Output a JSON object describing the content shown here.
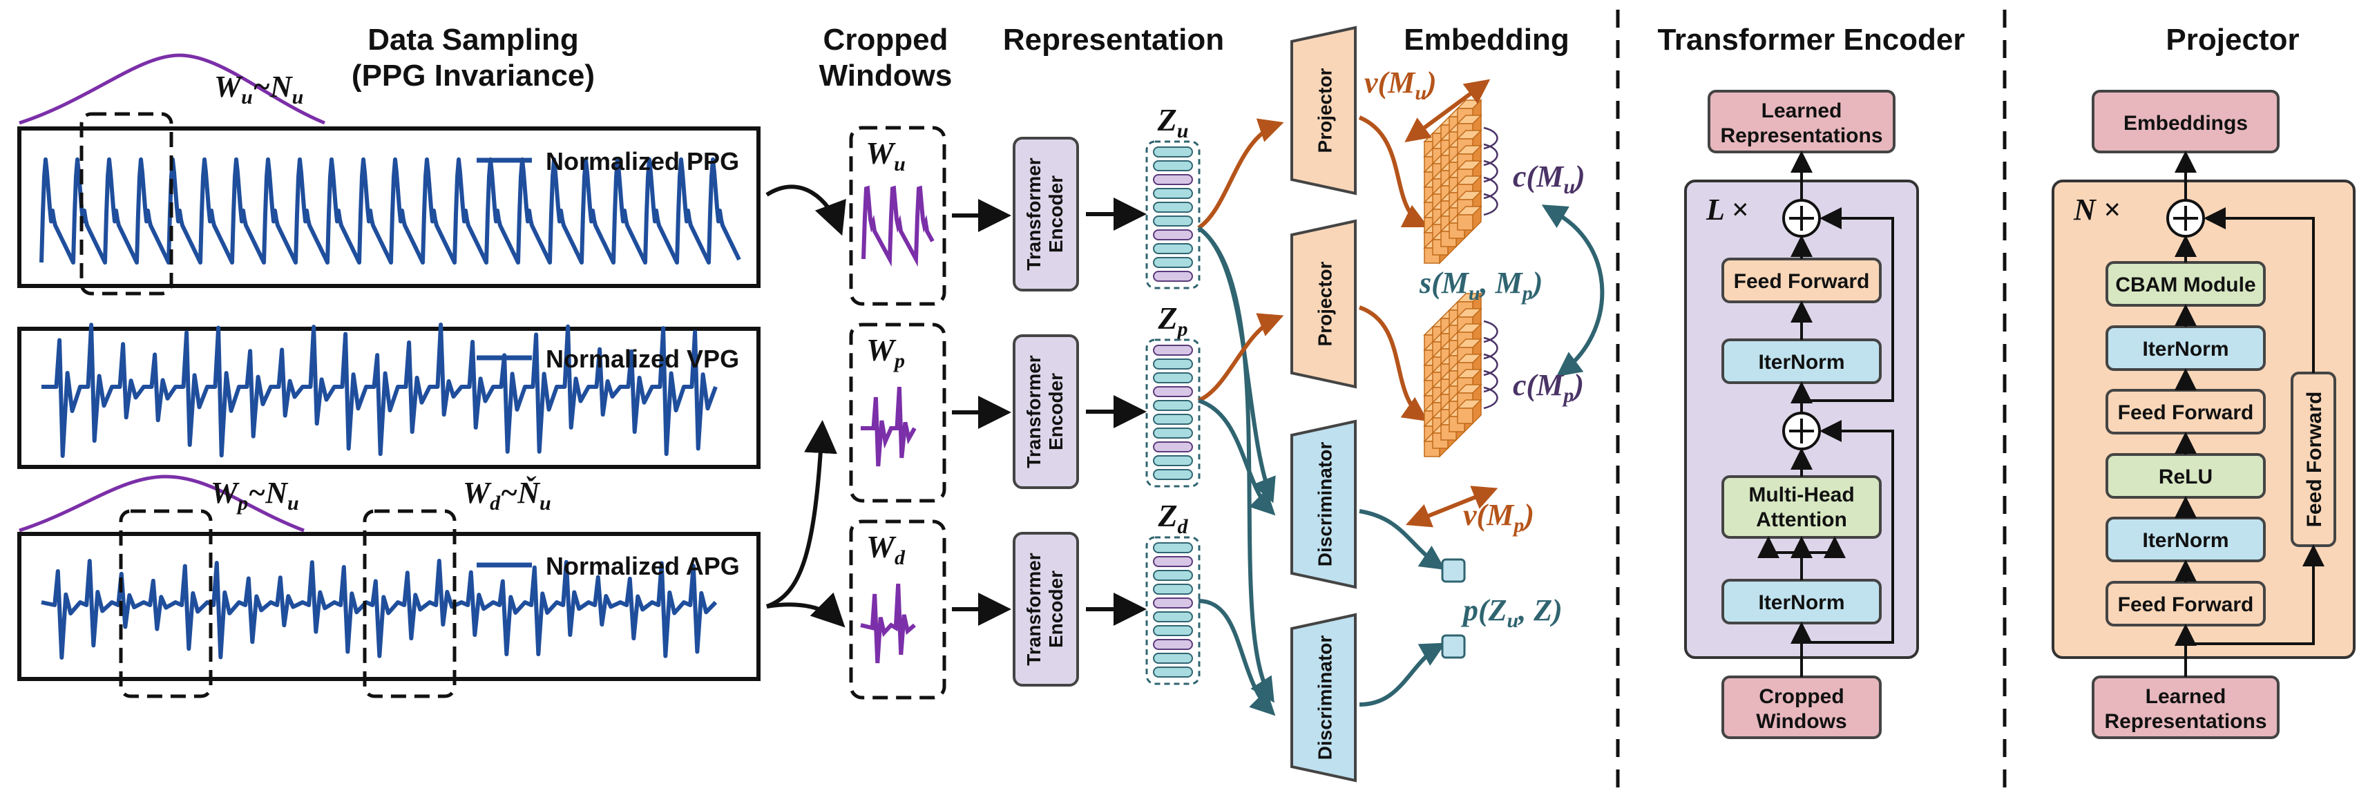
{
  "sections": {
    "data_sampling": "Data Sampling",
    "data_sampling_sub": "(PPG Invariance)",
    "cropped_windows_1": "Cropped",
    "cropped_windows_2": "Windows",
    "representation": "Representation",
    "embedding": "Embedding",
    "transformer_encoder": "Transformer Encoder",
    "projector": "Projector"
  },
  "signals": {
    "ppg_legend": "Normalized PPG",
    "vpg_legend": "Normalized VPG",
    "apg_legend": "Normalized APG"
  },
  "sampling_labels": {
    "wu": "W",
    "wu_sub": "u",
    "wu_dist": "~N",
    "wu_dist_sub": "u",
    "wp": "W",
    "wp_sub": "p",
    "wp_dist": "~N",
    "wp_dist_sub": "u",
    "wd": "W",
    "wd_sub": "d",
    "wd_dist": "~Ň",
    "wd_dist_sub": "u"
  },
  "windows": [
    {
      "sym": "W",
      "sub": "u"
    },
    {
      "sym": "W",
      "sub": "p"
    },
    {
      "sym": "W",
      "sub": "d"
    }
  ],
  "encoder_label_1": "Transformer",
  "encoder_label_2": "Encoder",
  "latents": [
    {
      "sym": "Z",
      "sub": "u"
    },
    {
      "sym": "Z",
      "sub": "p"
    },
    {
      "sym": "Z",
      "sub": "d"
    }
  ],
  "heads": {
    "projector": "Projector",
    "discriminator": "Discriminator"
  },
  "math_labels": {
    "v_mu": "v(M",
    "v_mu_sub": "u",
    "c_mu": "c(M",
    "c_mu_sub": "u",
    "s_m": "s(M",
    "s_m_sub1": "u",
    "s_m_mid": ", M",
    "s_m_sub2": "p",
    "c_mp": "c(M",
    "c_mp_sub": "p",
    "v_mp": "v(M",
    "v_mp_sub": "p",
    "p_z": "p(Z",
    "p_z_sub": "u",
    "p_z_end": ", Z)",
    "close": ")"
  },
  "encoder_block": {
    "output_1": "Learned",
    "output_2": "Representations",
    "repeat": "L ×",
    "feed_forward": "Feed Forward",
    "iternorm_1": "IterNorm",
    "mha_1": "Multi-Head",
    "mha_2": "Attention",
    "iternorm_2": "IterNorm",
    "input_1": "Cropped",
    "input_2": "Windows"
  },
  "projector_block": {
    "output": "Embeddings",
    "repeat": "N ×",
    "cbam": "CBAM Module",
    "iternorm_1": "IterNorm",
    "feed_forward_1": "Feed Forward",
    "relu": "ReLU",
    "iternorm_2": "IterNorm",
    "feed_forward_2": "Feed Forward",
    "side_ff": "Feed Forward",
    "input_1": "Learned",
    "input_2": "Representations"
  },
  "colors": {
    "signal": "#1f4e9c",
    "purple": "#7b2fa8",
    "orange_arrow": "#b5541a",
    "teal_arrow": "#2f6470",
    "encoder_fill": "#ddd6ea",
    "projector_fill": "#f9d6b8",
    "discriminator_fill": "#bfe0ee",
    "pink_fill": "#e7b7bd",
    "green_fill": "#d7e7c2",
    "blue_fill": "#bfe2ee",
    "orange_fill": "#f9d6b8",
    "cube_fill": "#f6b06a"
  }
}
